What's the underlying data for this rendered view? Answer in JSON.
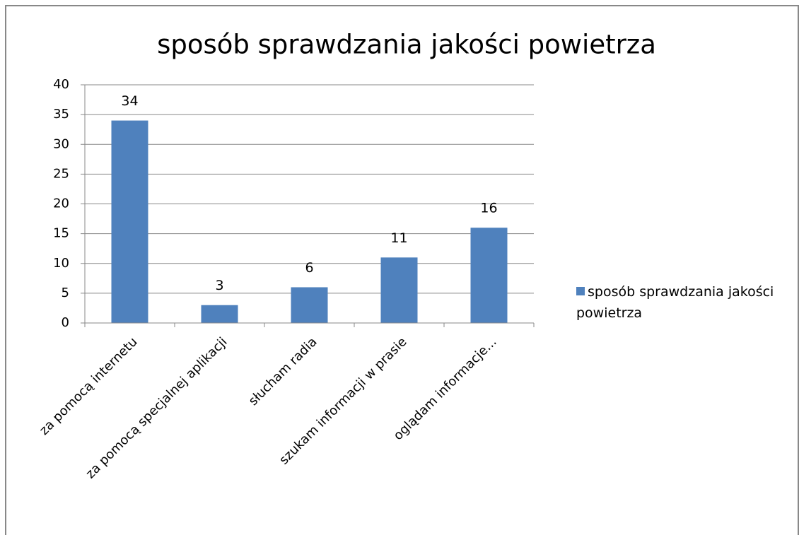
{
  "chart_data": {
    "type": "bar",
    "title": "sposób sprawdzania jakości powietrza",
    "categories": [
      "za pomocą internetu",
      "za pomocą specjalnej aplikacji",
      "słucham radia",
      "szukam informacji w prasie",
      "oglądam informacje..."
    ],
    "series": [
      {
        "name": "sposób sprawdzania jakości powietrza",
        "color": "#4f81bd",
        "values": [
          34,
          3,
          6,
          11,
          16
        ]
      }
    ],
    "ylim": [
      0,
      40
    ],
    "yticks": [
      0,
      5,
      10,
      15,
      20,
      25,
      30,
      35,
      40
    ],
    "grid": true,
    "legend": "right"
  }
}
